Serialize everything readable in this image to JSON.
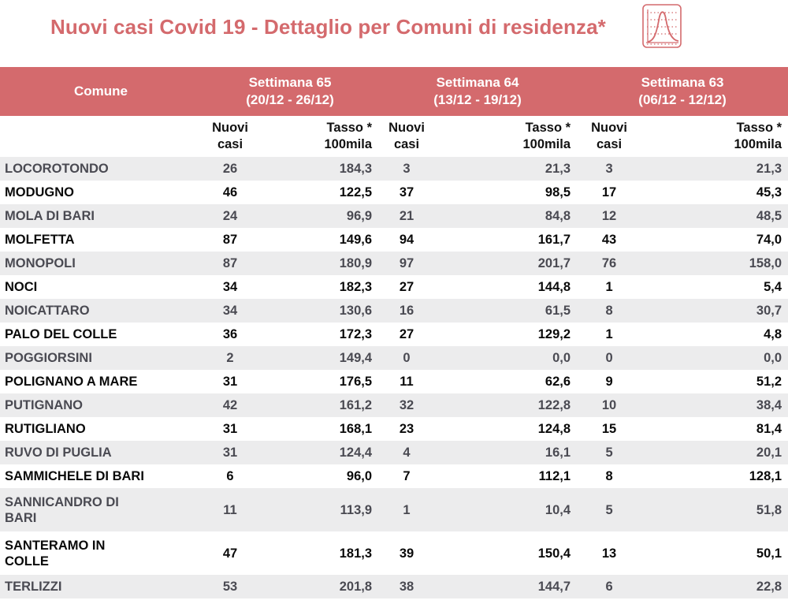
{
  "header": {
    "title": "Nuovi casi Covid 19 - Dettaglio per Comuni di residenza*",
    "icon": "epidemic-curve-chart-icon",
    "accent_color": "#d46a6d"
  },
  "table": {
    "comune_label": "Comune",
    "weeks": [
      {
        "label": "Settimana 65",
        "range": "(20/12 - 26/12)"
      },
      {
        "label": "Settimana 64",
        "range": "(13/12 - 19/12)"
      },
      {
        "label": "Settimana 63",
        "range": "(06/12 - 12/12)"
      }
    ],
    "col_nuovi": [
      "Nuovi",
      "casi"
    ],
    "col_tasso": [
      "Tasso *",
      "100mila"
    ],
    "rows": [
      {
        "comune": "LOCOROTONDO",
        "values": [
          "26",
          "184,3",
          "3",
          "21,3",
          "3",
          "21,3"
        ]
      },
      {
        "comune": "MODUGNO",
        "values": [
          "46",
          "122,5",
          "37",
          "98,5",
          "17",
          "45,3"
        ]
      },
      {
        "comune": "MOLA DI BARI",
        "values": [
          "24",
          "96,9",
          "21",
          "84,8",
          "12",
          "48,5"
        ]
      },
      {
        "comune": "MOLFETTA",
        "values": [
          "87",
          "149,6",
          "94",
          "161,7",
          "43",
          "74,0"
        ]
      },
      {
        "comune": "MONOPOLI",
        "values": [
          "87",
          "180,9",
          "97",
          "201,7",
          "76",
          "158,0"
        ]
      },
      {
        "comune": "NOCI",
        "values": [
          "34",
          "182,3",
          "27",
          "144,8",
          "1",
          "5,4"
        ]
      },
      {
        "comune": "NOICATTARO",
        "values": [
          "34",
          "130,6",
          "16",
          "61,5",
          "8",
          "30,7"
        ]
      },
      {
        "comune": "PALO DEL COLLE",
        "values": [
          "36",
          "172,3",
          "27",
          "129,2",
          "1",
          "4,8"
        ]
      },
      {
        "comune": "POGGIORSINI",
        "values": [
          "2",
          "149,4",
          "0",
          "0,0",
          "0",
          "0,0"
        ]
      },
      {
        "comune": "POLIGNANO A MARE",
        "values": [
          "31",
          "176,5",
          "11",
          "62,6",
          "9",
          "51,2"
        ]
      },
      {
        "comune": "PUTIGNANO",
        "values": [
          "42",
          "161,2",
          "32",
          "122,8",
          "10",
          "38,4"
        ]
      },
      {
        "comune": "RUTIGLIANO",
        "values": [
          "31",
          "168,1",
          "23",
          "124,8",
          "15",
          "81,4"
        ]
      },
      {
        "comune": "RUVO DI PUGLIA",
        "values": [
          "31",
          "124,4",
          "4",
          "16,1",
          "5",
          "20,1"
        ]
      },
      {
        "comune": "SAMMICHELE DI BARI",
        "values": [
          "6",
          "96,0",
          "7",
          "112,1",
          "8",
          "128,1"
        ]
      },
      {
        "comune": "SANNICANDRO DI BARI",
        "lines": [
          "SANNICANDRO DI",
          "BARI"
        ],
        "values": [
          "11",
          "113,9",
          "1",
          "10,4",
          "5",
          "51,8"
        ]
      },
      {
        "comune": "SANTERAMO IN COLLE",
        "lines": [
          "SANTERAMO IN",
          "COLLE"
        ],
        "values": [
          "47",
          "181,3",
          "39",
          "150,4",
          "13",
          "50,1"
        ]
      },
      {
        "comune": "TERLIZZI",
        "values": [
          "53",
          "201,8",
          "38",
          "144,7",
          "6",
          "22,8"
        ]
      }
    ]
  }
}
